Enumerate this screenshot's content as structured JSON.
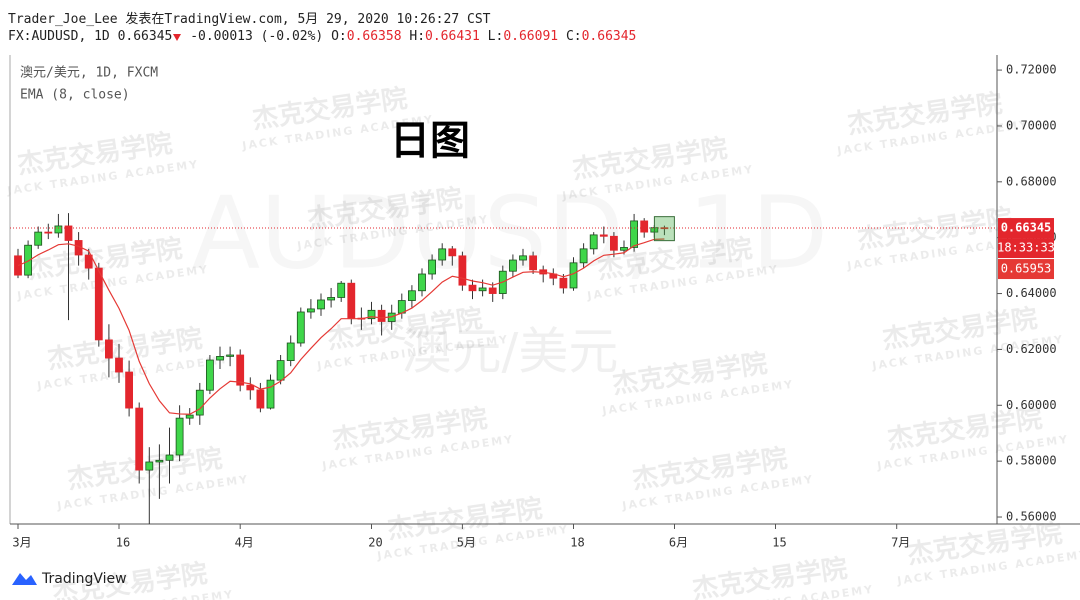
{
  "header": {
    "line1": "Trader_Joe_Lee 发表在TradingView.com, 5月 29, 2020 10:26:27 CST",
    "symbol": "FX:AUDUSD, 1D",
    "change": "-0.00013 (-0.02%)",
    "ohlc_labels": [
      "O:",
      "H:",
      "L:",
      "C:"
    ]
  },
  "footer": {
    "logo": "TradingView"
  },
  "watermark": {
    "cn": "杰克交易学院",
    "en": "JACK TRADING ACADEMY"
  },
  "chart_data": {
    "type": "candlestick",
    "title": "日图",
    "symbol_label": "澳元/美元, 1D, FXCM",
    "background_symbol": "AUDUSD, 1D",
    "background_name": "澳元/美元",
    "countdown": "18:33:33",
    "up_color": "#3fd64a",
    "down_color": "#e3262d",
    "border_color": "#1d4f1d",
    "categories": [
      "3月",
      null,
      null,
      null,
      null,
      null,
      null,
      null,
      null,
      null,
      "16",
      null,
      null,
      null,
      null,
      null,
      null,
      null,
      null,
      null,
      null,
      null,
      "4月",
      null,
      null,
      null,
      null,
      null,
      null,
      null,
      null,
      null,
      null,
      null,
      null,
      "20",
      null,
      null,
      null,
      null,
      null,
      null,
      null,
      null,
      "5月",
      null,
      null,
      null,
      null,
      null,
      null,
      null,
      null,
      null,
      null,
      "18",
      null,
      null,
      null,
      null,
      null,
      null,
      null,
      null,
      null,
      "6月",
      null,
      null,
      null,
      null,
      null,
      null,
      null,
      null,
      null,
      "15",
      null,
      null,
      null,
      null,
      null,
      null,
      null,
      null,
      null,
      null,
      null,
      "7月",
      null,
      null,
      null,
      null,
      null,
      null,
      null,
      null,
      null
    ],
    "open": [
      0.6535,
      0.6466,
      0.6573,
      0.662,
      0.6617,
      0.6642,
      0.659,
      0.6538,
      0.6491,
      0.6234,
      0.6169,
      0.6119,
      0.599,
      0.5768,
      0.5797,
      0.5803,
      0.5822,
      0.5954,
      0.5965,
      0.6054,
      0.6162,
      0.6175,
      0.618,
      0.6072,
      0.6055,
      0.599,
      0.609,
      0.616,
      0.6223,
      0.6334,
      0.6345,
      0.6377,
      0.6386,
      0.6437,
      0.6312,
      0.631,
      0.634,
      0.63,
      0.633,
      0.6375,
      0.641,
      0.647,
      0.652,
      0.656,
      0.6535,
      0.643,
      0.641,
      0.642,
      0.64,
      0.648,
      0.652,
      0.6535,
      0.6485,
      0.647,
      0.6455,
      0.642,
      0.651,
      0.656,
      0.661,
      0.6605,
      0.6555,
      0.6565,
      0.666,
      0.662,
      0.66358,
      null,
      null,
      null,
      null,
      null,
      null,
      null,
      null,
      null,
      null,
      null,
      null,
      null,
      null,
      null,
      null,
      null,
      null,
      null,
      null,
      null,
      null,
      null,
      null,
      null,
      null,
      null,
      null,
      null,
      null,
      null,
      null
    ],
    "high": [
      0.656,
      0.659,
      0.664,
      0.665,
      0.6685,
      0.6688,
      0.662,
      0.656,
      0.651,
      0.629,
      0.622,
      0.616,
      0.601,
      0.585,
      0.586,
      0.592,
      0.6,
      0.599,
      0.608,
      0.618,
      0.621,
      0.621,
      0.62,
      0.61,
      0.608,
      0.611,
      0.618,
      0.625,
      0.635,
      0.638,
      0.64,
      0.642,
      0.6445,
      0.645,
      0.635,
      0.637,
      0.636,
      0.636,
      0.64,
      0.643,
      0.649,
      0.654,
      0.658,
      0.657,
      0.655,
      0.645,
      0.645,
      0.644,
      0.65,
      0.654,
      0.656,
      0.655,
      0.65,
      0.649,
      0.647,
      0.653,
      0.658,
      0.662,
      0.664,
      0.662,
      0.659,
      0.6685,
      0.667,
      0.6645,
      0.66431,
      null,
      null,
      null,
      null,
      null,
      null,
      null,
      null,
      null,
      null,
      null,
      null,
      null,
      null,
      null,
      null,
      null,
      null,
      null,
      null,
      null,
      null,
      null,
      null,
      null,
      null,
      null,
      null,
      null,
      null,
      null,
      null
    ],
    "low": [
      0.6455,
      0.6455,
      0.656,
      0.6595,
      0.66,
      0.6305,
      0.65,
      0.645,
      0.621,
      0.61,
      0.608,
      0.596,
      0.572,
      0.5506,
      0.5665,
      0.572,
      0.58,
      0.593,
      0.593,
      0.604,
      0.613,
      0.614,
      0.605,
      0.602,
      0.5975,
      0.5985,
      0.6075,
      0.614,
      0.621,
      0.631,
      0.632,
      0.635,
      0.637,
      0.629,
      0.627,
      0.629,
      0.625,
      0.627,
      0.631,
      0.635,
      0.639,
      0.645,
      0.65,
      0.65,
      0.641,
      0.638,
      0.639,
      0.637,
      0.638,
      0.646,
      0.65,
      0.647,
      0.644,
      0.643,
      0.64,
      0.641,
      0.649,
      0.654,
      0.658,
      0.653,
      0.654,
      0.655,
      0.66,
      0.66,
      0.66091,
      null,
      null,
      null,
      null,
      null,
      null,
      null,
      null,
      null,
      null,
      null,
      null,
      null,
      null,
      null,
      null,
      null,
      null,
      null,
      null,
      null,
      null,
      null,
      null,
      null,
      null,
      null,
      null,
      null,
      null,
      null,
      null
    ],
    "close": [
      0.6466,
      0.6573,
      0.662,
      0.6617,
      0.6642,
      0.659,
      0.6538,
      0.6491,
      0.6234,
      0.6169,
      0.6119,
      0.599,
      0.5768,
      0.5797,
      0.5803,
      0.5822,
      0.5954,
      0.5965,
      0.6054,
      0.6162,
      0.6175,
      0.618,
      0.6072,
      0.6055,
      0.599,
      0.609,
      0.616,
      0.6223,
      0.6334,
      0.6345,
      0.6377,
      0.6386,
      0.6437,
      0.6312,
      0.631,
      0.634,
      0.63,
      0.633,
      0.6375,
      0.641,
      0.647,
      0.652,
      0.656,
      0.6535,
      0.643,
      0.641,
      0.642,
      0.64,
      0.648,
      0.652,
      0.6535,
      0.6485,
      0.647,
      0.6455,
      0.642,
      0.651,
      0.656,
      0.661,
      0.6605,
      0.6555,
      0.6565,
      0.666,
      0.662,
      0.6636,
      0.66345,
      null,
      null,
      null,
      null,
      null,
      null,
      null,
      null,
      null,
      null,
      null,
      null,
      null,
      null,
      null,
      null,
      null,
      null,
      null,
      null,
      null,
      null,
      null,
      null,
      null,
      null,
      null,
      null,
      null,
      null,
      null,
      null
    ],
    "ema": {
      "name": "EMA (8, close)",
      "color": "#e53935",
      "values": [
        0.65,
        0.6516,
        0.6539,
        0.6556,
        0.6575,
        0.6578,
        0.6569,
        0.6552,
        0.6481,
        0.6412,
        0.6347,
        0.6268,
        0.6157,
        0.6077,
        0.6016,
        0.5973,
        0.5969,
        0.5968,
        0.5987,
        0.6026,
        0.6059,
        0.6086,
        0.6083,
        0.6077,
        0.6058,
        0.6065,
        0.6086,
        0.6116,
        0.6164,
        0.6204,
        0.6242,
        0.6274,
        0.631,
        0.631,
        0.631,
        0.6317,
        0.6313,
        0.6317,
        0.633,
        0.6348,
        0.6375,
        0.6407,
        0.6441,
        0.6462,
        0.6455,
        0.6445,
        0.6439,
        0.643,
        0.6441,
        0.6459,
        0.6476,
        0.6478,
        0.6476,
        0.6471,
        0.646,
        0.6471,
        0.6491,
        0.6517,
        0.6537,
        0.6541,
        0.6546,
        0.6571,
        0.6582,
        0.6594,
        0.65953,
        null,
        null,
        null,
        null,
        null,
        null,
        null,
        null,
        null,
        null,
        null,
        null,
        null,
        null,
        null,
        null,
        null,
        null,
        null,
        null,
        null,
        null,
        null,
        null,
        null,
        null,
        null,
        null,
        null,
        null,
        null,
        null
      ]
    },
    "ylim": [
      0.5575,
      0.7254
    ],
    "yticks": [
      {
        "value": 0.56,
        "label": "0.56000"
      },
      {
        "value": 0.58,
        "label": "0.58000"
      },
      {
        "value": 0.6,
        "label": "0.60000"
      },
      {
        "value": 0.62,
        "label": "0.62000"
      },
      {
        "value": 0.64,
        "label": "0.64000"
      },
      {
        "value": 0.66,
        "label": "0.66000"
      },
      {
        "value": 0.68,
        "label": "0.68000"
      },
      {
        "value": 0.7,
        "label": "0.70000"
      },
      {
        "value": 0.72,
        "label": "0.72000"
      }
    ]
  }
}
